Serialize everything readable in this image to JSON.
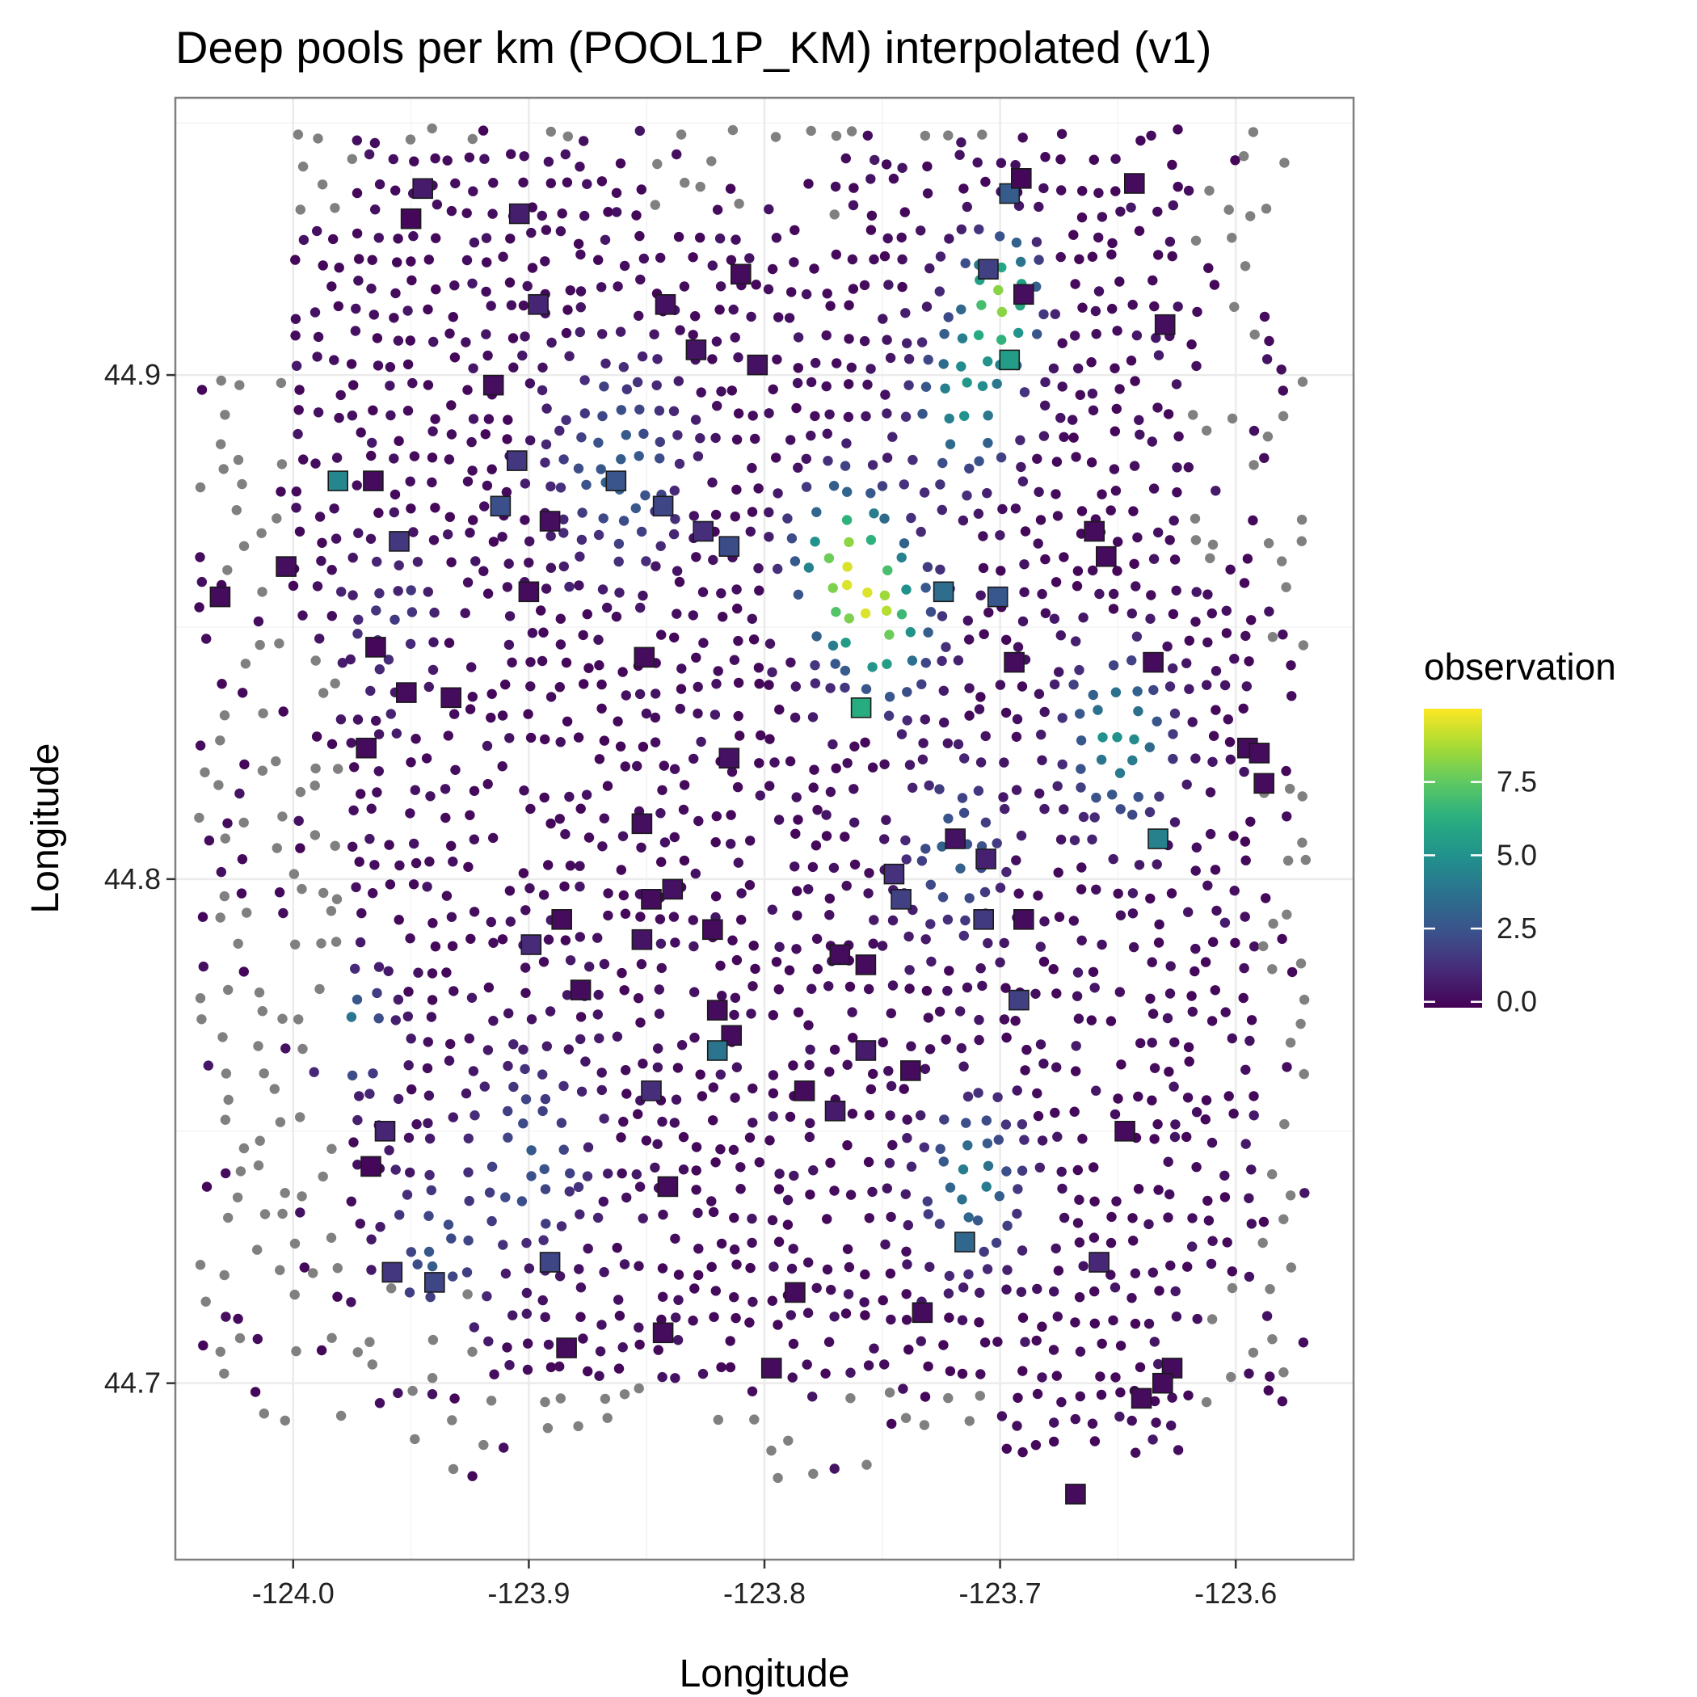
{
  "chart_data": {
    "type": "scatter",
    "title": "Deep pools per km (POOL1P_KM) interpolated (v1)",
    "xlabel": "Longitude",
    "ylabel": "Longitude",
    "xlim": [
      -124.05,
      -123.55
    ],
    "ylim": [
      44.665,
      44.955
    ],
    "x_ticks": [
      -124.0,
      -123.9,
      -123.8,
      -123.7,
      -123.6
    ],
    "x_tick_labels": [
      "-124.0",
      "-123.9",
      "-123.8",
      "-123.7",
      "-123.6"
    ],
    "y_ticks": [
      44.7,
      44.8,
      44.9
    ],
    "y_tick_labels": [
      "44.7",
      "44.8",
      "44.9"
    ],
    "grid": true,
    "legend": {
      "title": "observation",
      "placement": "right",
      "colormap": "viridis",
      "range": [
        -0.2,
        10.0
      ],
      "breaks": [
        0.0,
        2.5,
        5.0,
        7.5
      ],
      "break_labels": [
        "0.0",
        "2.5",
        "5.0",
        "7.5"
      ]
    },
    "missing_color": "#808080",
    "observed_sites": [
      [
        -123.945,
        44.937,
        0.6
      ],
      [
        -123.95,
        44.931,
        0.0
      ],
      [
        -123.904,
        44.932,
        0.7
      ],
      [
        -123.896,
        44.914,
        0.9
      ],
      [
        -123.842,
        44.914,
        0.3
      ],
      [
        -123.81,
        44.92,
        0.1
      ],
      [
        -123.829,
        44.905,
        0.4
      ],
      [
        -123.803,
        44.902,
        0.3
      ],
      [
        -123.915,
        44.898,
        0.2
      ],
      [
        -123.905,
        44.883,
        1.5
      ],
      [
        -123.863,
        44.879,
        2.5
      ],
      [
        -123.981,
        44.879,
        4.5
      ],
      [
        -123.966,
        44.879,
        0.1
      ],
      [
        -123.912,
        44.874,
        2.3
      ],
      [
        -123.891,
        44.871,
        0.2
      ],
      [
        -123.843,
        44.874,
        2.0
      ],
      [
        -123.826,
        44.869,
        1.2
      ],
      [
        -123.815,
        44.866,
        2.2
      ],
      [
        -123.955,
        44.867,
        1.5
      ],
      [
        -124.003,
        44.862,
        0.2
      ],
      [
        -124.031,
        44.856,
        0.1
      ],
      [
        -123.9,
        44.857,
        0.1
      ],
      [
        -123.724,
        44.857,
        3.5
      ],
      [
        -123.701,
        44.856,
        2.6
      ],
      [
        -123.696,
        44.936,
        2.8
      ],
      [
        -123.691,
        44.939,
        0.0
      ],
      [
        -123.643,
        44.938,
        0.1
      ],
      [
        -123.705,
        44.921,
        1.8
      ],
      [
        -123.69,
        44.916,
        0.2
      ],
      [
        -123.63,
        44.91,
        0.2
      ],
      [
        -123.696,
        44.903,
        5.5
      ],
      [
        -123.66,
        44.869,
        0.1
      ],
      [
        -123.655,
        44.864,
        0.1
      ],
      [
        -123.965,
        44.846,
        0.0
      ],
      [
        -123.851,
        44.844,
        0.1
      ],
      [
        -123.694,
        44.843,
        0.1
      ],
      [
        -123.635,
        44.843,
        0.1
      ],
      [
        -123.952,
        44.837,
        0.1
      ],
      [
        -123.933,
        44.836,
        0.1
      ],
      [
        -123.759,
        44.834,
        6.2
      ],
      [
        -123.969,
        44.826,
        0.1
      ],
      [
        -123.815,
        44.824,
        0.3
      ],
      [
        -123.595,
        44.826,
        0.1
      ],
      [
        -123.59,
        44.825,
        0.1
      ],
      [
        -123.588,
        44.819,
        0.1
      ],
      [
        -123.852,
        44.811,
        0.2
      ],
      [
        -123.719,
        44.808,
        0.3
      ],
      [
        -123.633,
        44.808,
        4.3
      ],
      [
        -123.706,
        44.804,
        0.8
      ],
      [
        -123.745,
        44.801,
        1.3
      ],
      [
        -123.839,
        44.798,
        0.3
      ],
      [
        -123.742,
        44.796,
        1.8
      ],
      [
        -123.848,
        44.796,
        0.1
      ],
      [
        -123.707,
        44.792,
        1.6
      ],
      [
        -123.69,
        44.792,
        0.1
      ],
      [
        -123.886,
        44.792,
        0.1
      ],
      [
        -123.822,
        44.79,
        0.1
      ],
      [
        -123.899,
        44.787,
        1.1
      ],
      [
        -123.852,
        44.788,
        0.4
      ],
      [
        -123.768,
        44.785,
        0.1
      ],
      [
        -123.757,
        44.783,
        0.1
      ],
      [
        -123.878,
        44.778,
        0.1
      ],
      [
        -123.82,
        44.774,
        0.1
      ],
      [
        -123.692,
        44.776,
        1.8
      ],
      [
        -123.814,
        44.769,
        0.1
      ],
      [
        -123.82,
        44.766,
        3.8
      ],
      [
        -123.757,
        44.766,
        0.6
      ],
      [
        -123.738,
        44.762,
        0.1
      ],
      [
        -123.783,
        44.758,
        0.1
      ],
      [
        -123.848,
        44.758,
        1.2
      ],
      [
        -123.77,
        44.754,
        0.6
      ],
      [
        -123.961,
        44.75,
        0.9
      ],
      [
        -123.647,
        44.75,
        0.1
      ],
      [
        -123.967,
        44.743,
        0.0
      ],
      [
        -123.841,
        44.739,
        0.1
      ],
      [
        -123.891,
        44.724,
        2.0
      ],
      [
        -123.958,
        44.722,
        1.5
      ],
      [
        -123.94,
        44.72,
        2.0
      ],
      [
        -123.715,
        44.728,
        3.2
      ],
      [
        -123.658,
        44.724,
        1.0
      ],
      [
        -123.787,
        44.718,
        0.1
      ],
      [
        -123.733,
        44.714,
        0.1
      ],
      [
        -123.843,
        44.71,
        0.1
      ],
      [
        -123.884,
        44.707,
        0.1
      ],
      [
        -123.797,
        44.703,
        0.1
      ],
      [
        -123.627,
        44.703,
        0.1
      ],
      [
        -123.631,
        44.7,
        0.1
      ],
      [
        -123.64,
        44.697,
        0.1
      ],
      [
        -123.668,
        44.678,
        0.1
      ]
    ]
  }
}
